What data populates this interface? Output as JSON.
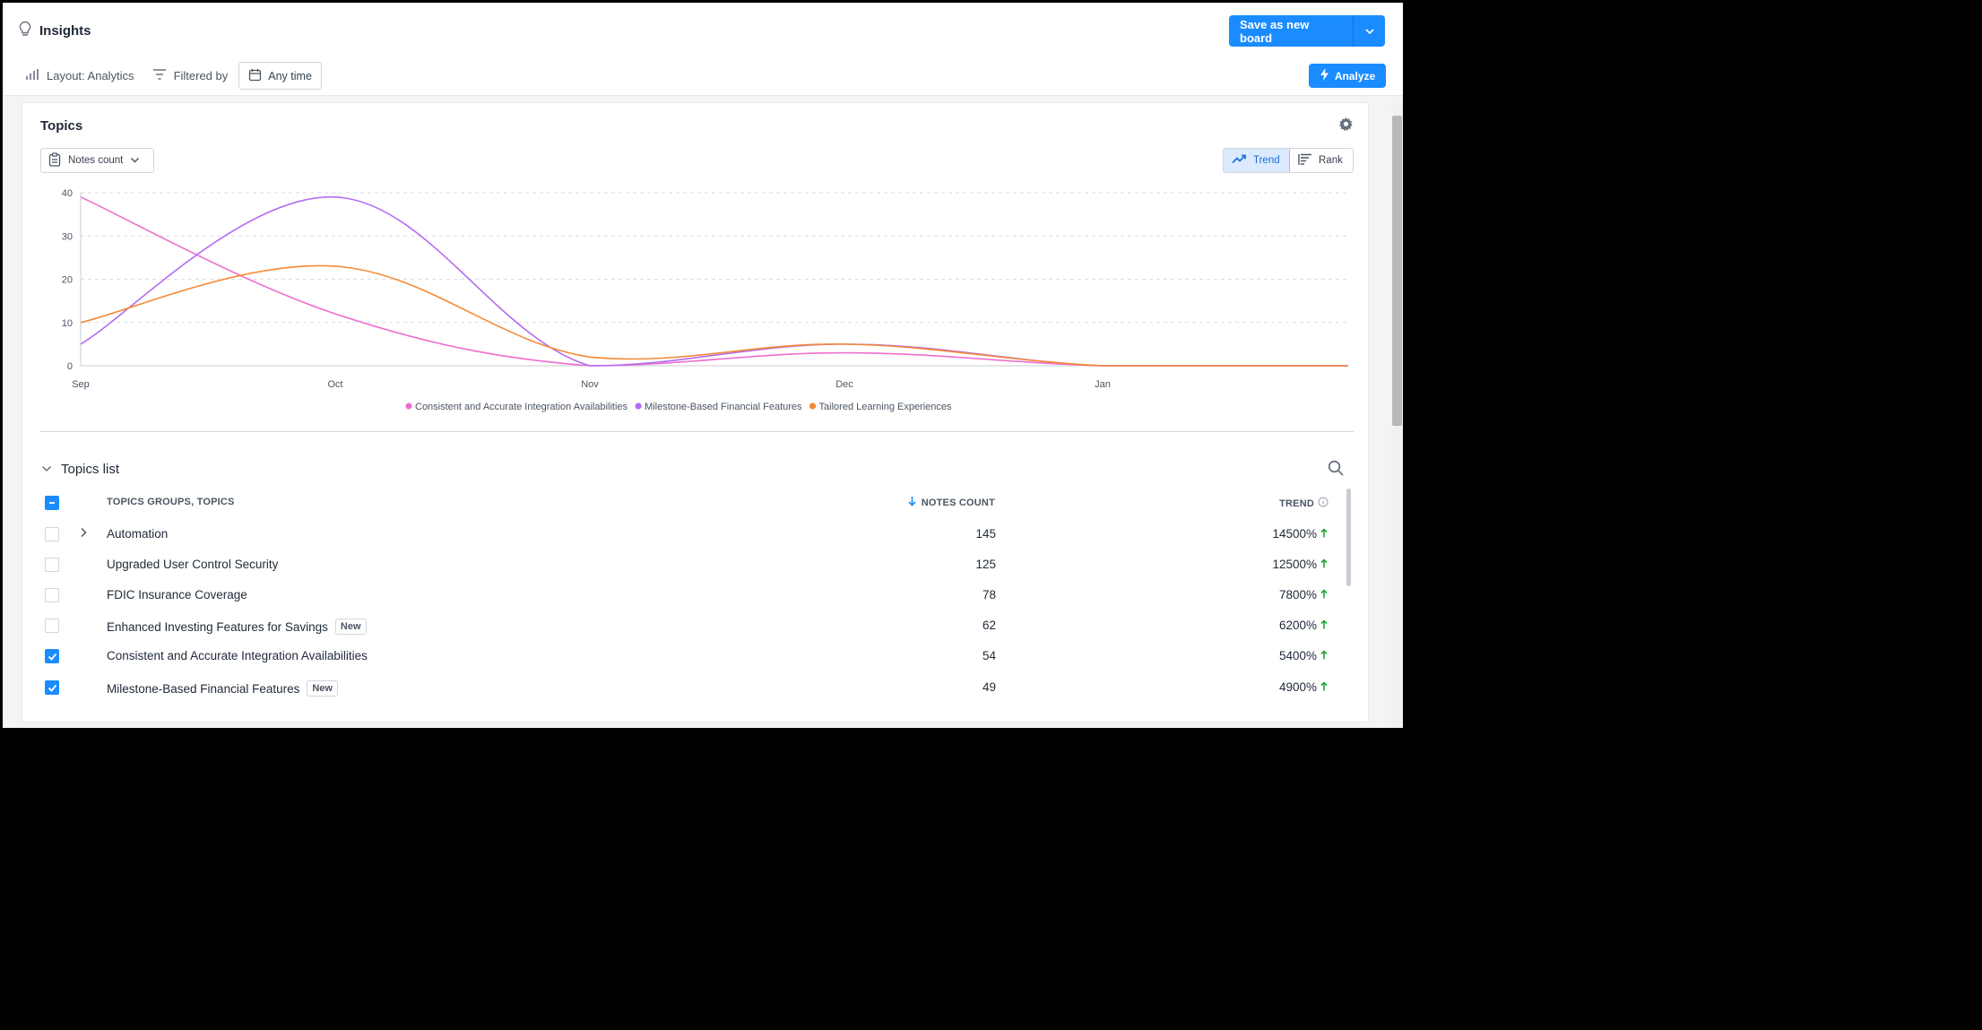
{
  "header": {
    "title": "Insights",
    "save_label": "Save as new board",
    "layout_label": "Layout: Analytics",
    "filtered_label": "Filtered by",
    "time_filter": "Any time",
    "analyze_label": "Analyze"
  },
  "card": {
    "title": "Topics",
    "metric_select": "Notes count",
    "trend_label": "Trend",
    "rank_label": "Rank"
  },
  "colors": {
    "accent": "#1a8cff",
    "pink": "#ee6fd0",
    "purple": "#b36bf0",
    "orange": "#f58a35",
    "trend_up": "#22a83a"
  },
  "chart_data": {
    "type": "line",
    "x": [
      "Sep",
      "Oct",
      "Nov",
      "Dec",
      "Jan",
      ""
    ],
    "ylim": [
      0,
      40
    ],
    "yticks": [
      0,
      10,
      20,
      30,
      40
    ],
    "grid": true,
    "legend_position": "bottom-center",
    "series": [
      {
        "name": "Consistent and Accurate Integration Availabilities",
        "color": "#ee6fd0",
        "values": [
          39,
          12,
          0,
          3,
          0,
          0
        ]
      },
      {
        "name": "Milestone-Based Financial Features",
        "color": "#b36bf0",
        "values": [
          5,
          39,
          0,
          5,
          0,
          0
        ]
      },
      {
        "name": "Tailored Learning Experiences",
        "color": "#f58a35",
        "values": [
          10,
          23,
          2,
          5,
          0,
          0
        ]
      }
    ]
  },
  "list": {
    "title": "Topics list",
    "col_name": "TOPICS GROUPS, TOPICS",
    "col_count": "NOTES COUNT",
    "col_trend": "TREND",
    "rows": [
      {
        "name": "Automation",
        "count": "145",
        "trend": "14500%",
        "checked": false,
        "expandable": true,
        "badge": ""
      },
      {
        "name": "Upgraded User Control Security",
        "count": "125",
        "trend": "12500%",
        "checked": false,
        "expandable": false,
        "badge": ""
      },
      {
        "name": "FDIC Insurance Coverage",
        "count": "78",
        "trend": "7800%",
        "checked": false,
        "expandable": false,
        "badge": ""
      },
      {
        "name": "Enhanced Investing Features for Savings",
        "count": "62",
        "trend": "6200%",
        "checked": false,
        "expandable": false,
        "badge": "New"
      },
      {
        "name": "Consistent and Accurate Integration Availabilities",
        "count": "54",
        "trend": "5400%",
        "checked": true,
        "expandable": false,
        "badge": ""
      },
      {
        "name": "Milestone-Based Financial Features",
        "count": "49",
        "trend": "4900%",
        "checked": true,
        "expandable": false,
        "badge": "New"
      }
    ]
  }
}
